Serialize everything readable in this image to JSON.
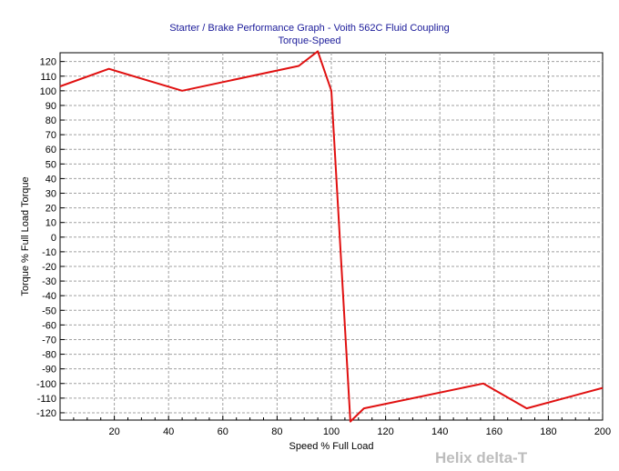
{
  "chart_data": {
    "type": "line",
    "title": "Starter / Brake Performance Graph - Voith 562C Fluid Coupling",
    "subtitle": "Torque-Speed",
    "xlabel": "Speed % Full Load",
    "ylabel": "Torque % Full Load Torque",
    "xlim": [
      0,
      200
    ],
    "ylim": [
      -125,
      126
    ],
    "xticks": [
      20,
      40,
      60,
      80,
      100,
      120,
      140,
      160,
      180,
      200
    ],
    "yticks": [
      120,
      110,
      100,
      90,
      80,
      70,
      60,
      50,
      40,
      30,
      20,
      10,
      0,
      -10,
      -20,
      -30,
      -40,
      -50,
      -60,
      -70,
      -80,
      -90,
      -100,
      -110,
      -120
    ],
    "grid": true,
    "series": [
      {
        "color": "#e01010",
        "x": [
          0,
          18,
          45,
          88,
          95,
          100,
          107,
          112,
          156,
          172,
          200
        ],
        "y": [
          103,
          115,
          100,
          117,
          127,
          100,
          -126,
          -117,
          -100,
          -117,
          -103
        ]
      }
    ]
  },
  "watermark": "Helix delta-T"
}
